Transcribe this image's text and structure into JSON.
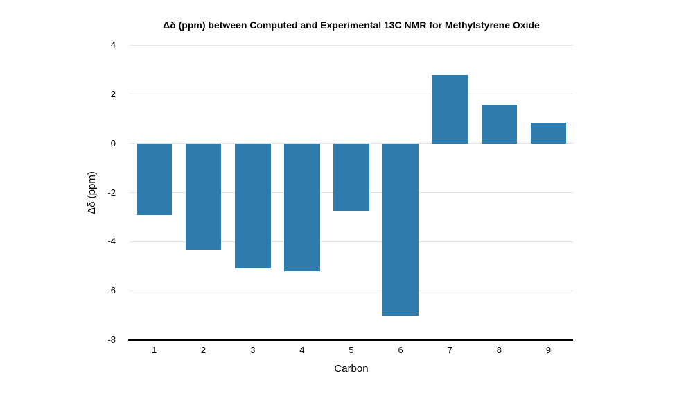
{
  "chart_data": {
    "type": "bar",
    "title": "Δδ (ppm) between Computed and Experimental 13C NMR for Methylstyrene Oxide",
    "xlabel": "Carbon",
    "ylabel": "Δδ (ppm)",
    "categories": [
      "1",
      "2",
      "3",
      "4",
      "5",
      "6",
      "7",
      "8",
      "9"
    ],
    "values": [
      -2.93,
      -4.33,
      -5.08,
      -5.2,
      -2.75,
      -7.02,
      2.79,
      1.58,
      0.83
    ],
    "ylim": [
      -8,
      4
    ],
    "yticks": [
      4,
      2,
      0,
      -2,
      -4,
      -6,
      -8
    ],
    "grid": "horizontal",
    "legend": "none",
    "bar_color": "#2E7CAD",
    "gridline_color": "#E3E3E3",
    "axis_line_color": "#000000",
    "text_color": "#000000",
    "background_color": "#FFFFFF"
  }
}
